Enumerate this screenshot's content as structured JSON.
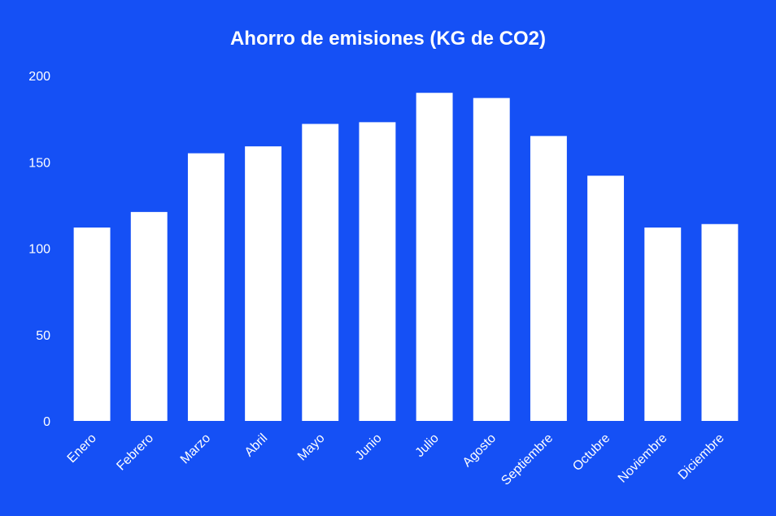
{
  "chart_data": {
    "type": "bar",
    "title": "Ahorro de emisiones (KG de CO2)",
    "xlabel": "",
    "ylabel": "",
    "categories": [
      "Enero",
      "Febrero",
      "Marzo",
      "Abril",
      "Mayo",
      "Junio",
      "Julio",
      "Agosto",
      "Septiembre",
      "Octubre",
      "Noviembre",
      "Diciembre"
    ],
    "values": [
      112,
      121,
      155,
      159,
      172,
      173,
      190,
      187,
      165,
      142,
      112,
      114
    ],
    "ylim": [
      0,
      200
    ],
    "yticks": [
      0,
      50,
      100,
      150,
      200
    ],
    "grid": false,
    "legend": "none",
    "colors": {
      "background": "#1550f5",
      "bar": "#ffffff",
      "text": "#ffffff"
    }
  }
}
